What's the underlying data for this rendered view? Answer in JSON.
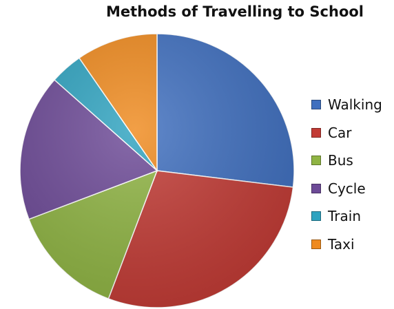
{
  "chart_data": {
    "type": "pie",
    "title": "Methods of Travelling to School",
    "legend_position": "right",
    "start_angle_deg": 0,
    "direction": "clockwise",
    "slices": [
      {
        "label": "Walking",
        "value": 28,
        "color": "#3f6fbf"
      },
      {
        "label": "Car",
        "value": 30,
        "color": "#c23b35"
      },
      {
        "label": "Bus",
        "value": 14,
        "color": "#8fb443"
      },
      {
        "label": "Cycle",
        "value": 18,
        "color": "#6d4a97"
      },
      {
        "label": "Train",
        "value": 4,
        "color": "#2fa3c0"
      },
      {
        "label": "Taxi",
        "value": 10,
        "color": "#ef8a1e"
      }
    ]
  }
}
